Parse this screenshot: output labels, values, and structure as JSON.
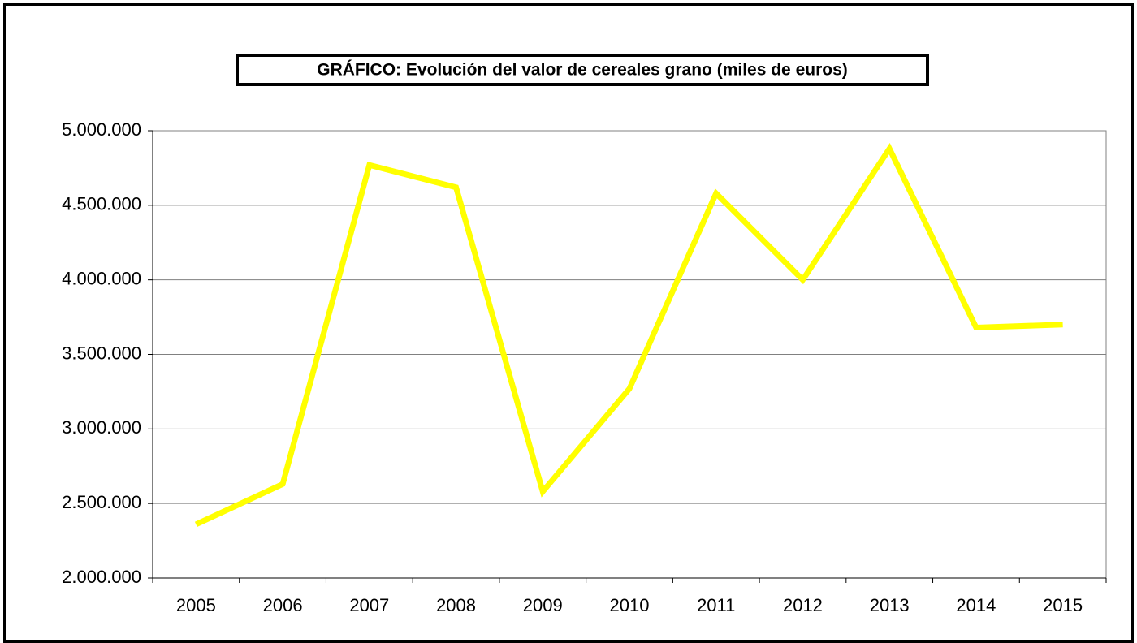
{
  "chart_data": {
    "type": "line",
    "title": "GRÁFICO: Evolución del valor de cereales grano (miles de euros)",
    "categories": [
      "2005",
      "2006",
      "2007",
      "2008",
      "2009",
      "2010",
      "2011",
      "2012",
      "2013",
      "2014",
      "2015"
    ],
    "values": [
      2360000,
      2630000,
      4770000,
      4620000,
      2580000,
      3270000,
      4580000,
      4000000,
      4880000,
      3680000,
      3700000
    ],
    "color": "#ffff00",
    "ylim": [
      2000000,
      5000000
    ],
    "yticks": [
      {
        "value": 2000000,
        "label": "2.000.000"
      },
      {
        "value": 2500000,
        "label": "2.500.000"
      },
      {
        "value": 3000000,
        "label": "3.000.000"
      },
      {
        "value": 3500000,
        "label": "3.500.000"
      },
      {
        "value": 4000000,
        "label": "4.000.000"
      },
      {
        "value": 4500000,
        "label": "4.500.000"
      },
      {
        "value": 5000000,
        "label": "5.000.000"
      }
    ],
    "grid": true
  }
}
